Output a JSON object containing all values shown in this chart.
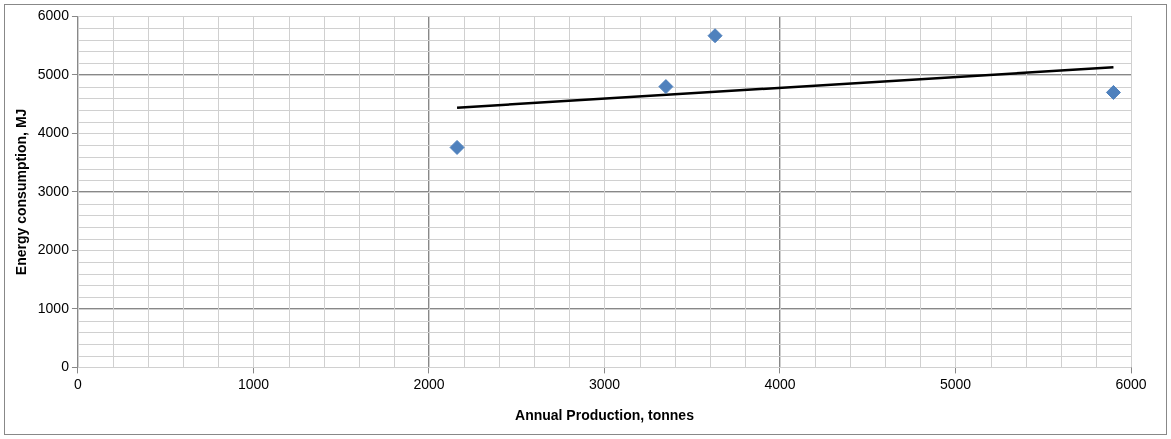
{
  "chart_data": {
    "type": "scatter",
    "xlabel": "Annual Production, tonnes",
    "ylabel": "Energy consumption, MJ",
    "xlim": [
      0,
      6000
    ],
    "xticks": [
      0,
      1000,
      2000,
      3000,
      4000,
      5000,
      6000
    ],
    "ylim": [
      0,
      6000
    ],
    "yticks": [
      0,
      1000,
      2000,
      3000,
      4000,
      5000,
      6000
    ],
    "grid": true,
    "marker": "diamond",
    "series": [
      {
        "color": "#4f81bd",
        "x": [
          2160,
          3350,
          3630,
          5900
        ],
        "values": [
          3760,
          4800,
          5670,
          4700
        ]
      },
      {
        "type": "line",
        "marker": "none",
        "color": "#000000",
        "x": [
          2160,
          5900
        ],
        "values": [
          4440,
          5130
        ]
      }
    ]
  }
}
